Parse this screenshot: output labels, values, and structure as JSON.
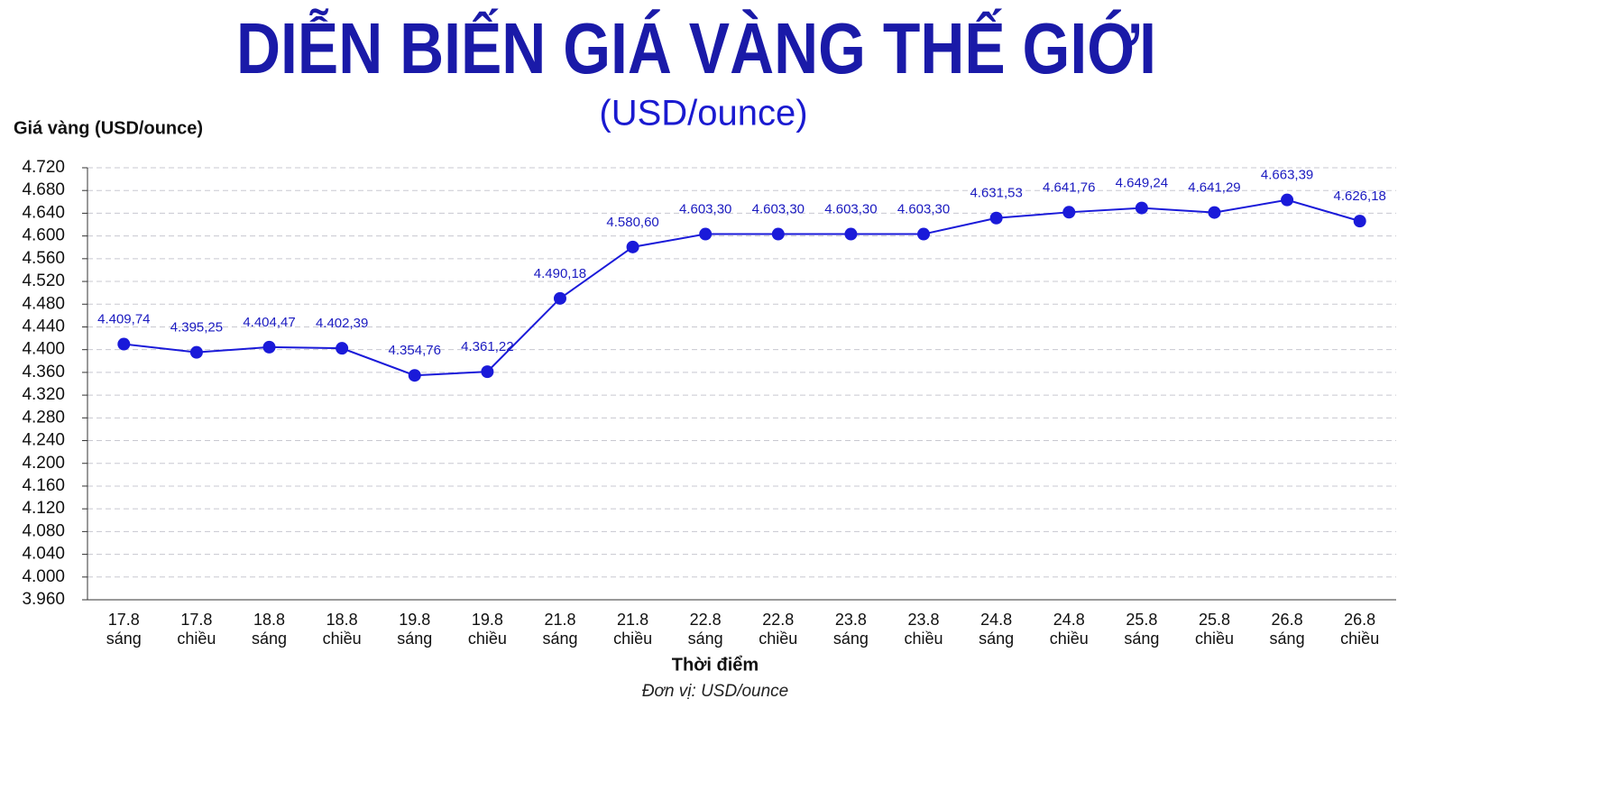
{
  "chart_data": {
    "type": "line",
    "title": "DIỄN BIẾN GIÁ VÀNG THẾ GIỚI",
    "subtitle": "(USD/ounce)",
    "y_label": "Giá vàng (USD/ounce)",
    "x_label": "Thời điểm",
    "note": "Đơn vị: USD/ounce",
    "categories": [
      [
        "17.8",
        "sáng"
      ],
      [
        "17.8",
        "chiều"
      ],
      [
        "18.8",
        "sáng"
      ],
      [
        "18.8",
        "chiều"
      ],
      [
        "19.8",
        "sáng"
      ],
      [
        "19.8",
        "chiều"
      ],
      [
        "21.8",
        "sáng"
      ],
      [
        "21.8",
        "chiều"
      ],
      [
        "22.8",
        "sáng"
      ],
      [
        "22.8",
        "chiều"
      ],
      [
        "23.8",
        "sáng"
      ],
      [
        "23.8",
        "chiều"
      ],
      [
        "24.8",
        "sáng"
      ],
      [
        "24.8",
        "chiều"
      ],
      [
        "25.8",
        "sáng"
      ],
      [
        "25.8",
        "chiều"
      ],
      [
        "26.8",
        "sáng"
      ],
      [
        "26.8",
        "chiều"
      ]
    ],
    "values": [
      4409.74,
      4395.25,
      4404.47,
      4402.39,
      4354.76,
      4361.22,
      4490.18,
      4580.6,
      4603.3,
      4603.3,
      4603.3,
      4603.3,
      4631.53,
      4641.76,
      4649.24,
      4641.29,
      4663.39,
      4626.18
    ],
    "value_labels": [
      "4.409,74",
      "4.395,25",
      "4.404,47",
      "4.402,39",
      "4.354,76",
      "4.361,22",
      "4.490,18",
      "4.580,60",
      "4.603,30",
      "4.603,30",
      "4.603,30",
      "4.603,30",
      "4.631,53",
      "4.641,76",
      "4.649,24",
      "4.641,29",
      "4.663,39",
      "4.626,18"
    ],
    "color": "#1a1ad9",
    "ylim": [
      3960,
      4720
    ],
    "yticks": [
      {
        "value": 3960,
        "label": "3.960"
      },
      {
        "value": 4000,
        "label": "4.000"
      },
      {
        "value": 4040,
        "label": "4.040"
      },
      {
        "value": 4080,
        "label": "4.080"
      },
      {
        "value": 4120,
        "label": "4.120"
      },
      {
        "value": 4160,
        "label": "4.160"
      },
      {
        "value": 4200,
        "label": "4.200"
      },
      {
        "value": 4240,
        "label": "4.240"
      },
      {
        "value": 4280,
        "label": "4.280"
      },
      {
        "value": 4320,
        "label": "4.320"
      },
      {
        "value": 4360,
        "label": "4.360"
      },
      {
        "value": 4400,
        "label": "4.400"
      },
      {
        "value": 4440,
        "label": "4.440"
      },
      {
        "value": 4480,
        "label": "4.480"
      },
      {
        "value": 4520,
        "label": "4.520"
      },
      {
        "value": 4560,
        "label": "4.560"
      },
      {
        "value": 4600,
        "label": "4.600"
      },
      {
        "value": 4640,
        "label": "4.640"
      },
      {
        "value": 4680,
        "label": "4.680"
      },
      {
        "value": 4720,
        "label": "4.720"
      }
    ],
    "grid": true
  }
}
